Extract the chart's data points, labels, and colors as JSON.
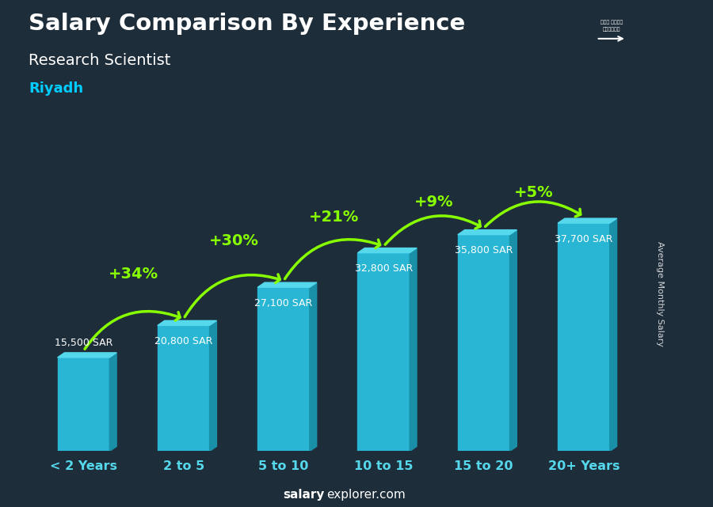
{
  "title": "Salary Comparison By Experience",
  "subtitle": "Research Scientist",
  "city": "Riyadh",
  "categories": [
    "< 2 Years",
    "2 to 5",
    "5 to 10",
    "10 to 15",
    "15 to 20",
    "20+ Years"
  ],
  "values": [
    15500,
    20800,
    27100,
    32800,
    35800,
    37700
  ],
  "value_labels": [
    "15,500 SAR",
    "20,800 SAR",
    "27,100 SAR",
    "32,800 SAR",
    "35,800 SAR",
    "37,700 SAR"
  ],
  "pct_labels": [
    "+34%",
    "+30%",
    "+21%",
    "+9%",
    "+5%"
  ],
  "bar_color": "#29b6d4",
  "bar_color_top": "#55d8ec",
  "bar_color_side": "#1a8fa8",
  "pct_color": "#88ff00",
  "value_label_color": "#ffffff",
  "title_color": "#ffffff",
  "subtitle_color": "#ffffff",
  "city_color": "#00ccff",
  "bg_color": "#1e2d3a",
  "footer_bold": "salary",
  "footer_normal": "explorer.com",
  "ylabel": "Average Monthly Salary",
  "ylim": [
    0,
    44000
  ],
  "flag_color": "#4a8a00"
}
